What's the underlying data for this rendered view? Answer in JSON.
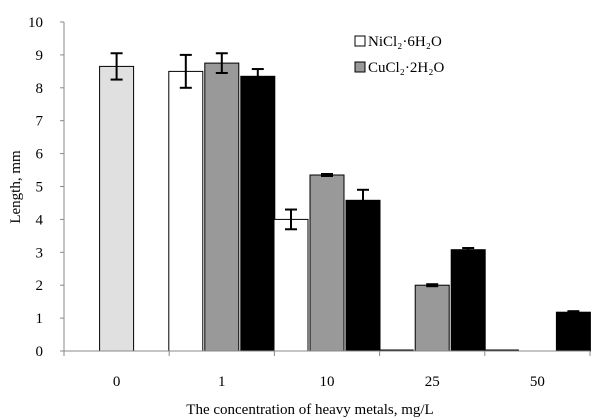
{
  "chart_data": {
    "type": "bar",
    "xlabel": "The concentration of heavy metals, mg/L",
    "ylabel": "Length, mm",
    "ylim": [
      0,
      10
    ],
    "yticks": [
      "0",
      "1",
      "2",
      "3",
      "4",
      "5",
      "6",
      "7",
      "8",
      "9",
      "10"
    ],
    "categories": [
      "0",
      "1",
      "10",
      "25",
      "50"
    ],
    "grid": false,
    "legend_position": "top-right",
    "series": [
      {
        "name": "NiCl₂·6H₂O",
        "color": "#ffffff",
        "values": [
          null,
          8.5,
          4.0,
          0.03,
          0.03
        ],
        "errors": [
          null,
          0.5,
          0.3,
          null,
          null
        ]
      },
      {
        "name": "CuCl₂·2H₂O",
        "color": "#999999",
        "values": [
          null,
          8.75,
          5.35,
          2.0,
          null
        ],
        "errors": [
          null,
          0.3,
          0.03,
          0.03,
          null
        ]
      },
      {
        "color": "#000000",
        "values": [
          null,
          8.35,
          4.58,
          3.08,
          1.18
        ],
        "errors": [
          null,
          0.22,
          0.32,
          0.05,
          0.03
        ]
      },
      {
        "color": "#e0e0e0",
        "values": [
          8.65,
          null,
          null,
          null,
          null
        ],
        "errors": [
          0.4,
          null,
          null,
          null,
          null
        ]
      }
    ]
  }
}
